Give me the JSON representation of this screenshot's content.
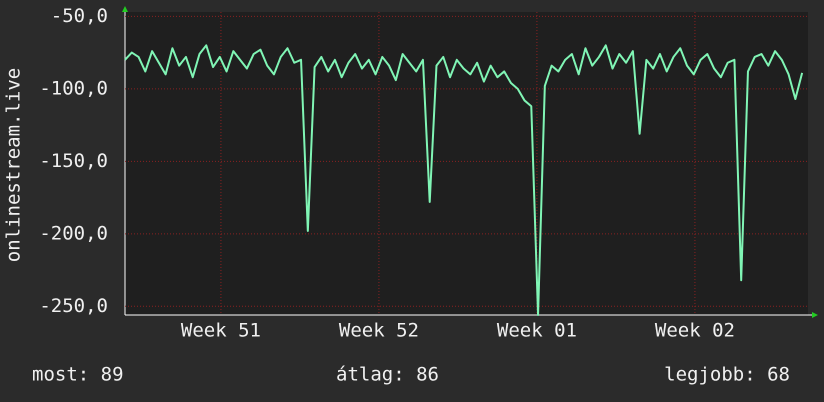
{
  "chart_data": {
    "type": "line",
    "ylabel": "onlinestream.live",
    "x": [
      0,
      0.3,
      0.6,
      0.9,
      1.2,
      1.5,
      1.8,
      2.1,
      2.4,
      2.7,
      3,
      3.3,
      3.6,
      3.9,
      4.2,
      4.5,
      4.8,
      5.1,
      5.4,
      5.7,
      6,
      6.3,
      6.6,
      6.9,
      7.2,
      7.5,
      7.8,
      8.1,
      8.4,
      8.7,
      9,
      9.3,
      9.6,
      9.9,
      10.2,
      10.5,
      10.8,
      11.1,
      11.4,
      11.7,
      12,
      12.3,
      12.6,
      12.9,
      13.2,
      13.5,
      13.8,
      14.1,
      14.4,
      14.7,
      15,
      15.3,
      15.6,
      15.9,
      16.2,
      16.5,
      16.8,
      17.1,
      17.4,
      17.7,
      18,
      18.3,
      18.6,
      18.9,
      19.2,
      19.5,
      19.8,
      20.1,
      20.4,
      20.7,
      21,
      21.3,
      21.6,
      21.9,
      22.2,
      22.5,
      22.8,
      23.1,
      23.4,
      23.7,
      24,
      24.3,
      24.6,
      24.9,
      25.2,
      25.5,
      25.8,
      26.1,
      26.4,
      26.7,
      27,
      27.3,
      27.6,
      27.9,
      28.2,
      28.5,
      28.8,
      29.1,
      29.4,
      29.7,
      30
    ],
    "series": [
      {
        "name": "onlinestream.live",
        "color": "#80f5b5",
        "values": [
          -80,
          -75,
          -78,
          -88,
          -74,
          -82,
          -90,
          -72,
          -84,
          -78,
          -92,
          -76,
          -70,
          -85,
          -78,
          -88,
          -74,
          -80,
          -86,
          -76,
          -73,
          -84,
          -90,
          -78,
          -72,
          -82,
          -80,
          -198,
          -85,
          -78,
          -88,
          -80,
          -92,
          -82,
          -76,
          -86,
          -80,
          -90,
          -78,
          -84,
          -94,
          -76,
          -82,
          -88,
          -80,
          -178,
          -84,
          -78,
          -92,
          -80,
          -86,
          -90,
          -82,
          -95,
          -84,
          -92,
          -88,
          -96,
          -100,
          -108,
          -112,
          -256,
          -98,
          -84,
          -88,
          -80,
          -76,
          -90,
          -72,
          -84,
          -78,
          -70,
          -86,
          -76,
          -82,
          -74,
          -131,
          -80,
          -86,
          -76,
          -88,
          -78,
          -72,
          -84,
          -90,
          -80,
          -76,
          -86,
          -92,
          -82,
          -80,
          -232,
          -88,
          -78,
          -76,
          -84,
          -74,
          -80,
          -90,
          -107,
          -89
        ]
      }
    ],
    "xlim": [
      0,
      30.26
    ],
    "xticks": [
      {
        "value": 4.25,
        "label": "Week 51"
      },
      {
        "value": 11.25,
        "label": "Week 52"
      },
      {
        "value": 18.25,
        "label": "Week 01"
      },
      {
        "value": 25.25,
        "label": "Week 02"
      }
    ],
    "ylim": [
      -256,
      -47
    ],
    "yticks": [
      {
        "value": -50,
        "label": "-50,0"
      },
      {
        "value": -100,
        "label": "-100,0"
      },
      {
        "value": -150,
        "label": "-150,0"
      },
      {
        "value": -200,
        "label": "-200,0"
      },
      {
        "value": -250,
        "label": "-250,0"
      }
    ],
    "grid": true,
    "footer": [
      "most: 89",
      "átlag: 86",
      "legjobb: 68"
    ]
  }
}
